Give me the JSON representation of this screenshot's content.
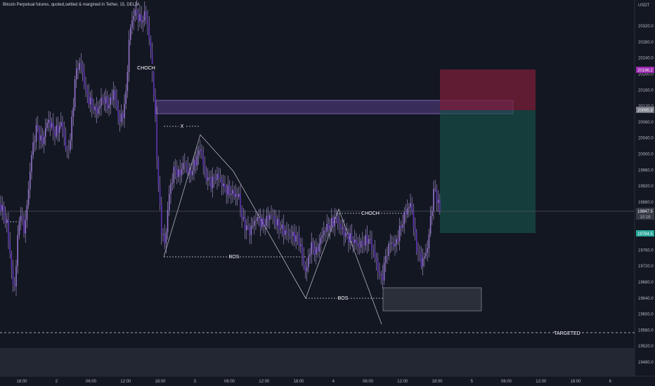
{
  "header": {
    "title": "Bitcoin Perpetual futures, quoted,settled & margined in Tether, 15, DELTA",
    "currency": "USDT"
  },
  "chart_data": {
    "type": "candlestick",
    "y_range": [
      19445,
      20385
    ],
    "y_ticks": [
      "20320.0",
      "20280.0",
      "20240.0",
      "20200.0",
      "20160.0",
      "20120.0",
      "20080.0",
      "20040.0",
      "20000.0",
      "19960.0",
      "19920.0",
      "19880.0",
      "19840.0",
      "19800.0",
      "19760.0",
      "19720.0",
      "19680.0",
      "19640.0",
      "19600.0",
      "19560.0",
      "19520.0",
      "19480.0"
    ],
    "x_ticks": [
      "18:00",
      "2",
      "06:00",
      "12:00",
      "18:00",
      "3",
      "06:00",
      "12:00",
      "18:00",
      "4",
      "06:00",
      "12:00",
      "18:00",
      "5",
      "06:00",
      "12:00",
      "18:00",
      "6"
    ],
    "price_badges": {
      "stop": "20196.2",
      "entry": "20095.8",
      "current_price": "19847.5",
      "countdown": "10:18",
      "target": "19784.5"
    },
    "annotations": [
      "CHOCH",
      "X",
      "BOS",
      "BOS",
      "CHOCH",
      "TARGETED"
    ],
    "colors": {
      "candle": "#7e57c2",
      "zone": "#7e57c2",
      "stop_zone": "#c2185b",
      "target_zone": "#26a69a",
      "demand_zone": "#2a2e39"
    }
  }
}
